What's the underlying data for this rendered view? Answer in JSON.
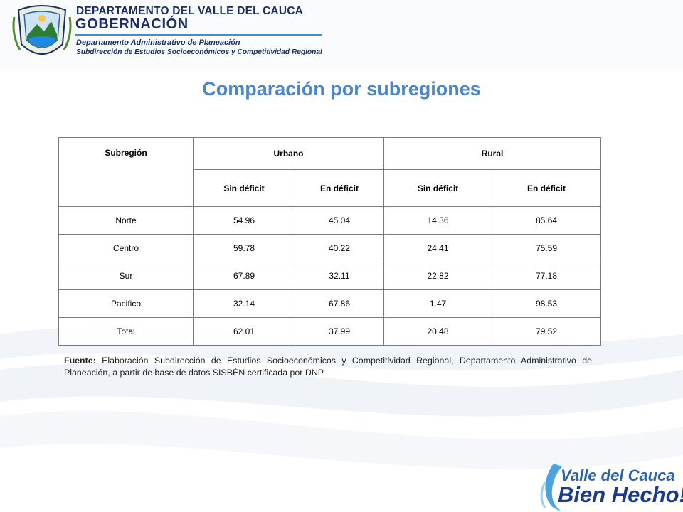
{
  "header": {
    "department": "DEPARTAMENTO DEL VALLE DEL CAUCA",
    "government": "GOBERNACIÓN",
    "office": "Departamento Administrativo de Planeación",
    "suboffice": "Subdirección de Estudios Socioeconómicos y Competitividad Regional"
  },
  "title": "Comparación por subregiones",
  "table": {
    "header_subregion": "Subregión",
    "header_urbano": "Urbano",
    "header_rural": "Rural",
    "sub_sin_deficit": "Sin déficit",
    "sub_en_deficit": "En déficit",
    "rows": [
      {
        "subregion": "Norte",
        "urbano_sin": "54.96",
        "urbano_en": "45.04",
        "rural_sin": "14.36",
        "rural_en": "85.64"
      },
      {
        "subregion": "Centro",
        "urbano_sin": "59.78",
        "urbano_en": "40.22",
        "rural_sin": "24.41",
        "rural_en": "75.59"
      },
      {
        "subregion": "Sur",
        "urbano_sin": "67.89",
        "urbano_en": "32.11",
        "rural_sin": "22.82",
        "rural_en": "77.18"
      },
      {
        "subregion": "Pacifico",
        "urbano_sin": "32.14",
        "urbano_en": "67.86",
        "rural_sin": "1.47",
        "rural_en": "98.53"
      },
      {
        "subregion": "Total",
        "urbano_sin": "62.01",
        "urbano_en": "37.99",
        "rural_sin": "20.48",
        "rural_en": "79.52"
      }
    ]
  },
  "source": {
    "label": "Fuente:",
    "text": " Elaboración Subdirección de Estudios Socioeconómicos y Competitividad Regional, Departamento Administrativo de Planeación, a partir de base de datos SISBÉN certificada por DNP."
  },
  "footer": {
    "line1": "Valle del Cauca",
    "line2": "Bien Hecho!"
  },
  "colors": {
    "title": "#4a86c8",
    "header_text": "#1b2f66",
    "accent_rule": "#3d8fd1",
    "crest_green": "#2e7d32",
    "crest_blue": "#1e88e5"
  },
  "icons": [
    "valle-del-cauca-crest-icon",
    "bien-hecho-swoosh-icon"
  ]
}
